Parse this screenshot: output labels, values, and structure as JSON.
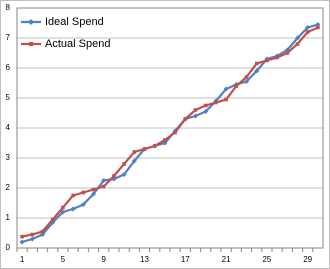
{
  "chart_data": {
    "type": "line",
    "categories": [
      1,
      null,
      null,
      null,
      5,
      null,
      null,
      null,
      9,
      null,
      null,
      null,
      13,
      null,
      null,
      null,
      17,
      null,
      null,
      null,
      21,
      null,
      null,
      null,
      25,
      null,
      null,
      null,
      29,
      null
    ],
    "series": [
      {
        "name": "Ideal Spend",
        "color": "#4f81bd",
        "values": [
          0.2,
          0.3,
          0.45,
          0.85,
          1.2,
          1.3,
          1.45,
          1.8,
          2.25,
          2.3,
          2.45,
          2.9,
          3.3,
          3.4,
          3.5,
          3.9,
          4.3,
          4.4,
          4.55,
          4.9,
          5.3,
          5.45,
          5.55,
          5.9,
          6.3,
          6.4,
          6.6,
          7.0,
          7.35,
          7.45
        ]
      },
      {
        "name": "Actual Spend",
        "color": "#c0504d",
        "values": [
          0.38,
          0.45,
          0.55,
          0.95,
          1.35,
          1.75,
          1.85,
          1.95,
          2.05,
          2.4,
          2.8,
          3.2,
          3.3,
          3.4,
          3.6,
          3.85,
          4.3,
          4.6,
          4.75,
          4.85,
          4.95,
          5.4,
          5.7,
          6.15,
          6.25,
          6.35,
          6.5,
          6.8,
          7.2,
          7.35
        ]
      }
    ],
    "ylim": [
      0,
      8
    ],
    "yticks": [
      0,
      1,
      2,
      3,
      4,
      5,
      6,
      7,
      8
    ],
    "grid": true,
    "legend": "top-left"
  }
}
